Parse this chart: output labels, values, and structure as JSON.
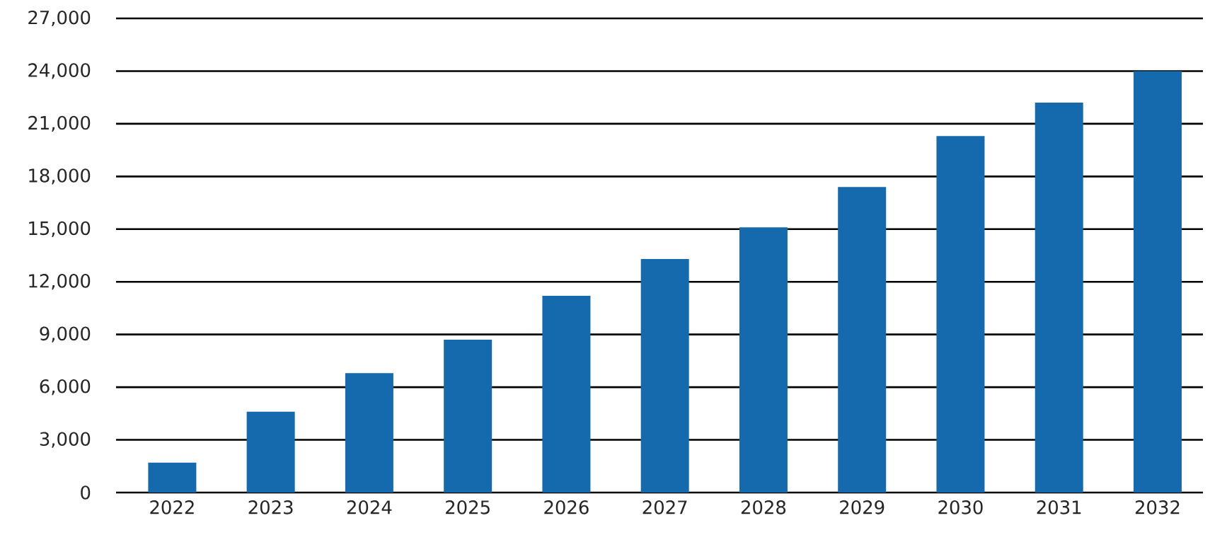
{
  "chart_data": {
    "type": "bar",
    "categories": [
      "2022",
      "2023",
      "2024",
      "2025",
      "2026",
      "2027",
      "2028",
      "2029",
      "2030",
      "2031",
      "2032"
    ],
    "values": [
      1700,
      4600,
      6800,
      8700,
      11200,
      13300,
      15100,
      17400,
      20300,
      22200,
      24000
    ],
    "color": "#156aad",
    "ylim": [
      0,
      27000
    ],
    "yticks": [
      0,
      {
        "value": 3000,
        "label": "3,000"
      },
      {
        "value": 6000,
        "label": "6,000"
      },
      {
        "value": 9000,
        "label": "9,000"
      },
      {
        "value": 12000,
        "label": "12,000"
      },
      {
        "value": 15000,
        "label": "15,000"
      },
      {
        "value": 18000,
        "label": "18,000"
      },
      {
        "value": 21000,
        "label": "21,000"
      },
      {
        "value": 24000,
        "label": "24,000"
      },
      {
        "value": 27000,
        "label": "27,000"
      }
    ],
    "grid": "y"
  }
}
